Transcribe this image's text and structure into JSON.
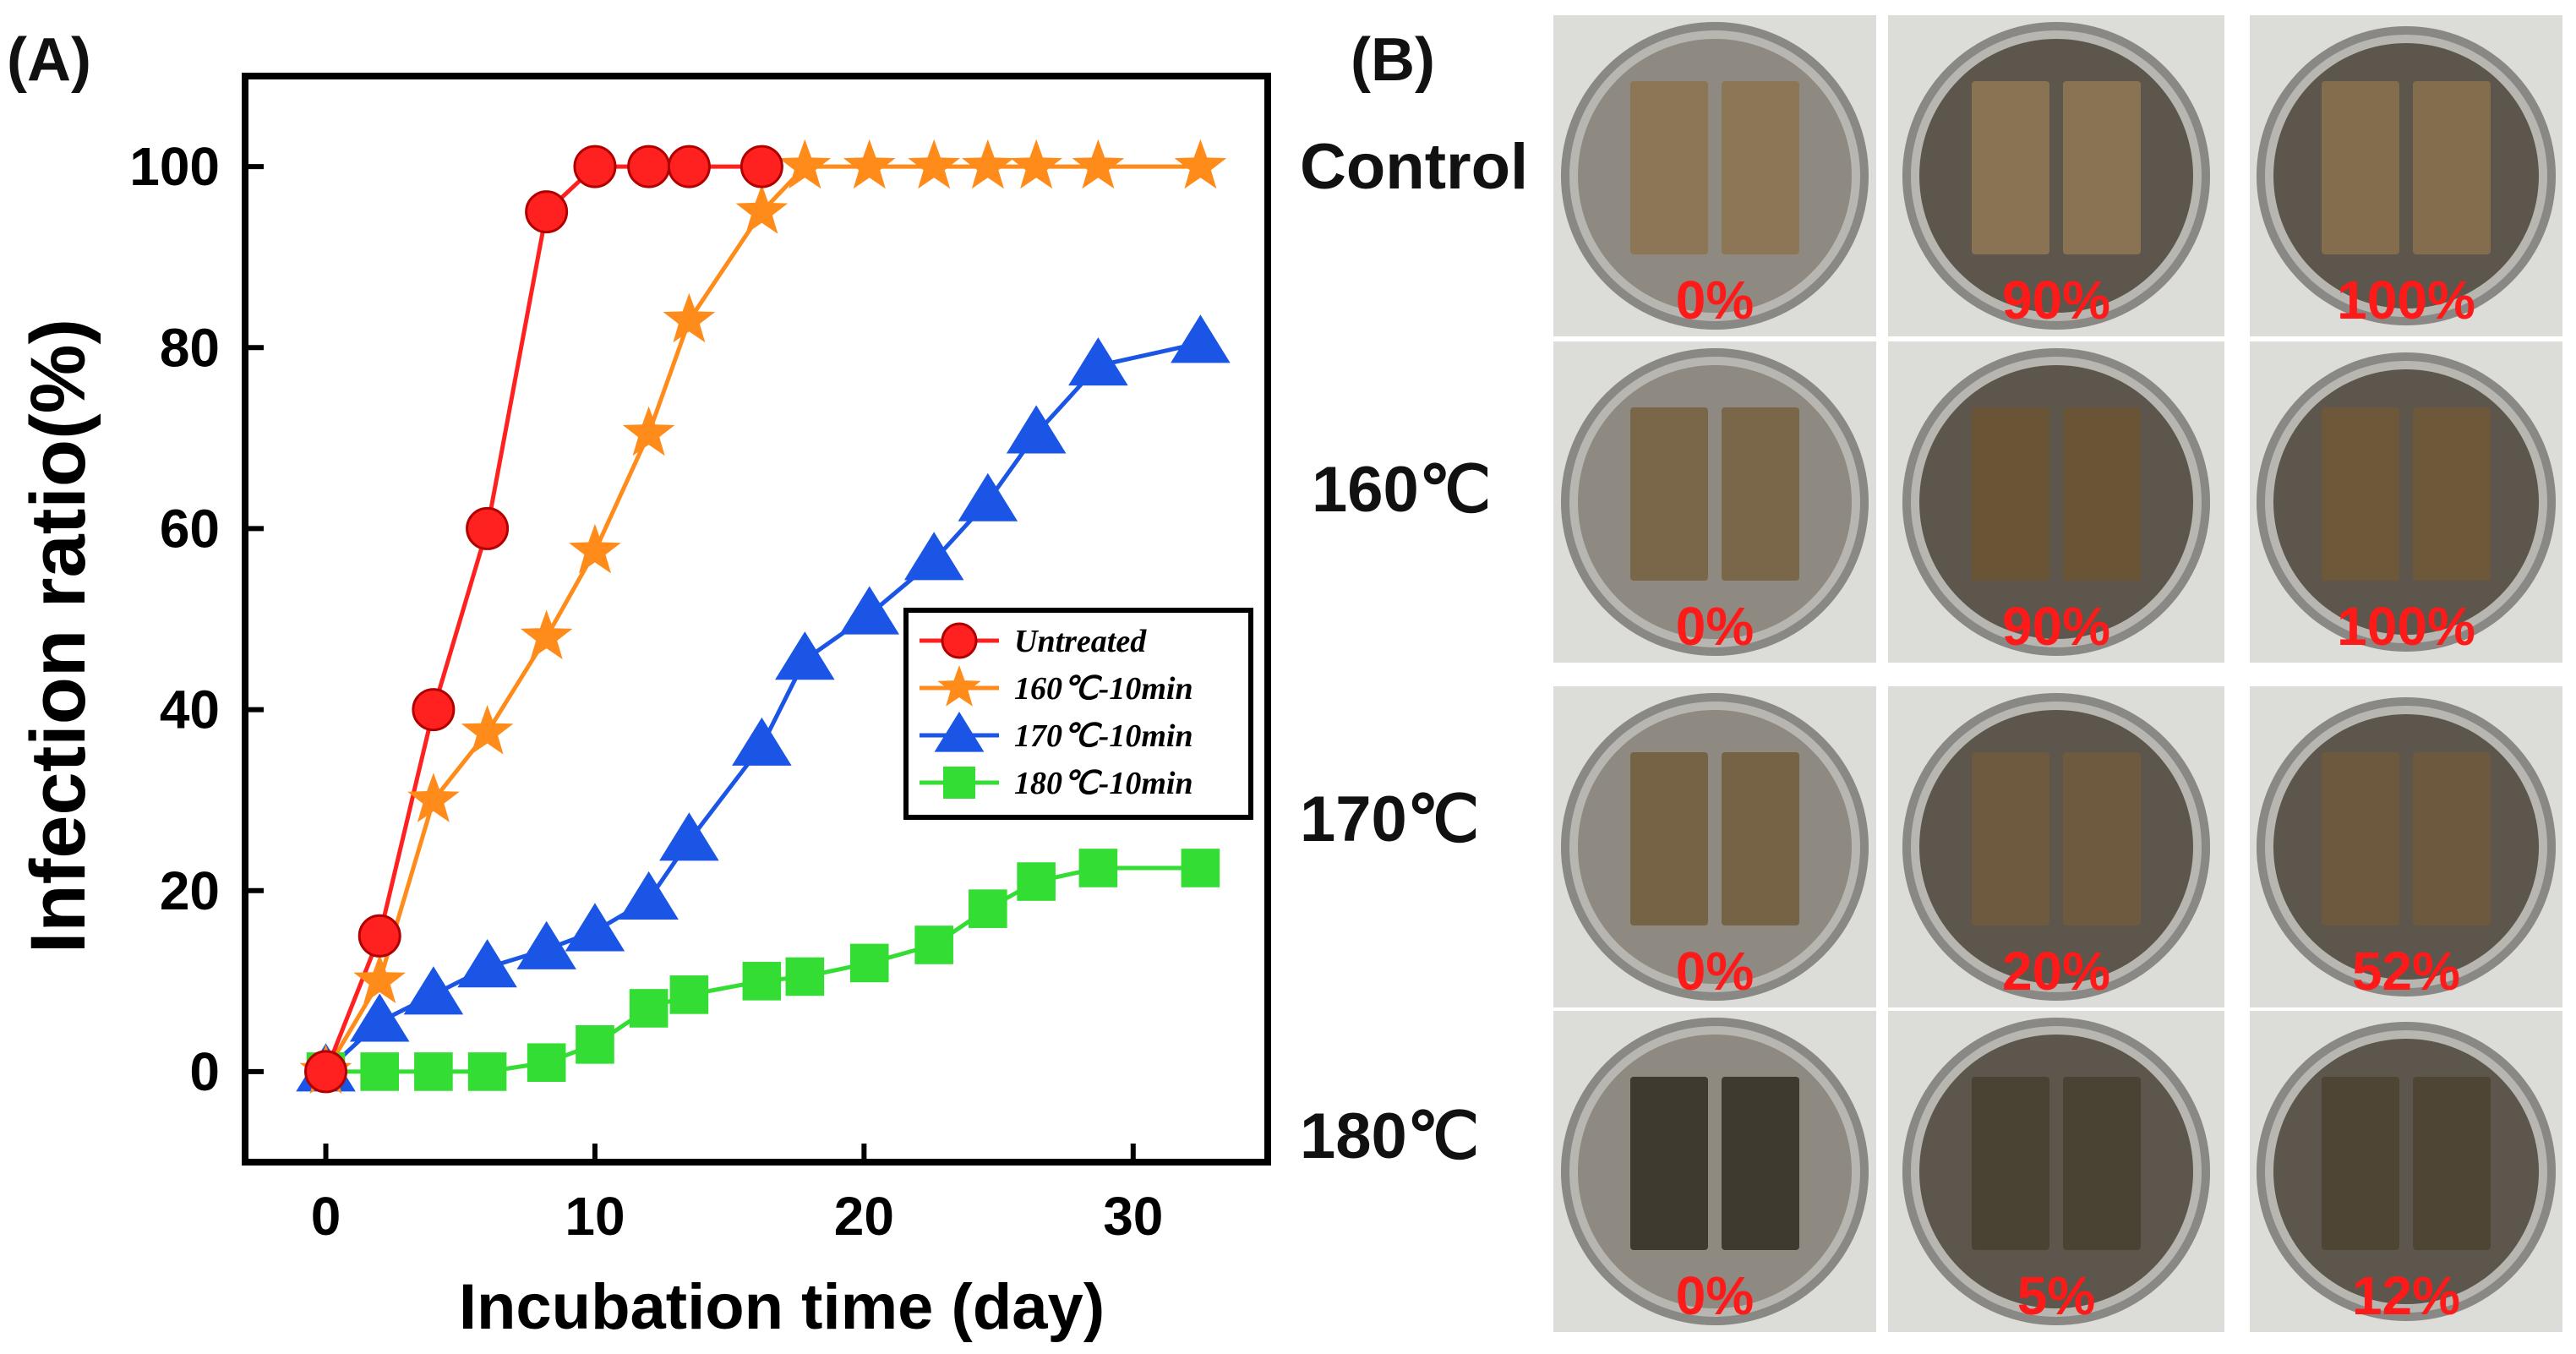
{
  "panels": {
    "a_label": "(A)",
    "b_label": "(B)"
  },
  "chart_data": {
    "type": "line",
    "title": "",
    "xlabel": "Incubation time (day)",
    "ylabel": "Infection ratio(%)",
    "xlim": [
      -3,
      35
    ],
    "ylim": [
      -10,
      110
    ],
    "xticks": [
      0,
      10,
      20,
      30
    ],
    "yticks": [
      0,
      20,
      40,
      60,
      80,
      100
    ],
    "grid": false,
    "legend_position": "center-right",
    "series": [
      {
        "name": "Untreated",
        "color": "#ff2020",
        "marker": "circle",
        "x": [
          0,
          2,
          4,
          6,
          8.2,
          10,
          12,
          13.5,
          16.2
        ],
        "y": [
          0,
          15,
          40,
          60,
          95,
          100,
          100,
          100,
          100
        ]
      },
      {
        "name": "160℃-10min",
        "color": "#ff8c1a",
        "marker": "star",
        "x": [
          0,
          2,
          4,
          6,
          8.2,
          10,
          12,
          13.5,
          16.2,
          17.8,
          20.2,
          22.6,
          24.6,
          26.4,
          28.7,
          32.5
        ],
        "y": [
          0,
          10,
          30,
          37.5,
          48,
          57.5,
          70.5,
          83,
          95,
          100,
          100,
          100,
          100,
          100,
          100,
          100
        ]
      },
      {
        "name": "170℃-10min",
        "color": "#1a55e6",
        "marker": "triangle",
        "x": [
          0,
          2,
          4,
          6,
          8.2,
          10,
          12,
          13.5,
          16.2,
          17.8,
          20.2,
          22.6,
          24.6,
          26.4,
          28.7,
          32.5
        ],
        "y": [
          0,
          5.5,
          8.5,
          11.5,
          13.5,
          15.5,
          19,
          25.5,
          36,
          45.5,
          50.5,
          56.5,
          63,
          70.5,
          78,
          80.5
        ]
      },
      {
        "name": "180℃-10min",
        "color": "#33dd33",
        "marker": "square",
        "x": [
          0,
          2,
          4,
          6,
          8.2,
          10,
          12,
          13.5,
          16.2,
          17.8,
          20.2,
          22.6,
          24.6,
          26.4,
          28.7,
          32.5
        ],
        "y": [
          0,
          0,
          0,
          0,
          1,
          3,
          7,
          8.5,
          10,
          10.5,
          12,
          14,
          18,
          21,
          22.5,
          22.5
        ]
      }
    ]
  },
  "photo_grid": {
    "rows": [
      {
        "label": "Control",
        "values": [
          "0%",
          "90%",
          "100%"
        ]
      },
      {
        "label": "160℃",
        "values": [
          "0%",
          "90%",
          "100%"
        ]
      },
      {
        "label": "170℃",
        "values": [
          "0%",
          "20%",
          "52%"
        ]
      },
      {
        "label": "180℃",
        "values": [
          "0%",
          "5%",
          "12%"
        ]
      }
    ],
    "value_color": "#ff1a1a"
  }
}
